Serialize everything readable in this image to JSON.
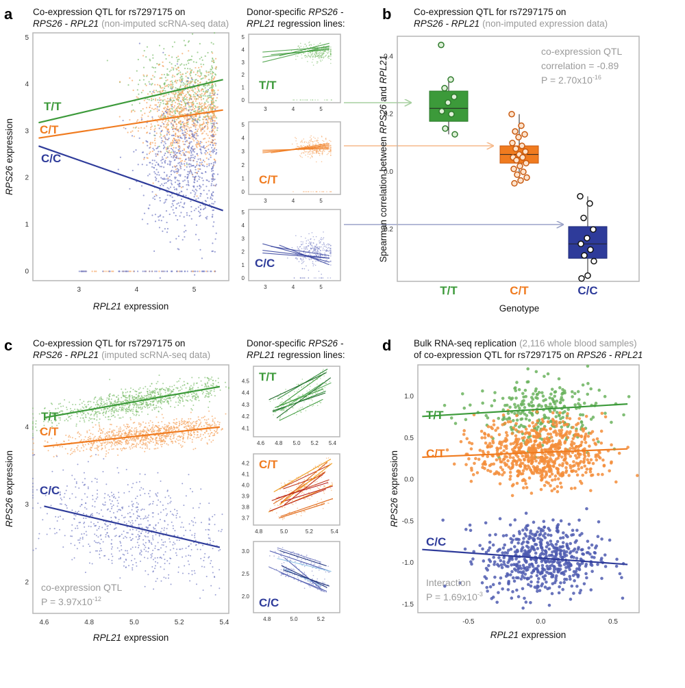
{
  "colors": {
    "tt": "#3c9a3a",
    "ct": "#f07b1f",
    "cc": "#2e3b9a",
    "frame": "#b5b5b5",
    "grey": "#9a9a9a"
  },
  "labels": {
    "a": "a",
    "b": "b",
    "c": "c",
    "d": "d",
    "tt": "T/T",
    "ct": "C/T",
    "cc": "C/C",
    "title_a1": "Co-expression QTL for rs7297175 on",
    "title_a2_genes": "RPS26 - RPL21",
    "title_a2_note": "(non-imputed scRNA-seq data)",
    "donor1_a": "Donor-specific",
    "donor1_b": "RPS26",
    "donor1_c": "-",
    "donor2_a": "RPL21",
    "donor2_b": "regression lines:",
    "title_b1": "Co-expression QTL for rs7297175 on",
    "title_b2_genes": "RPS26 - RPL21",
    "title_b2_note": "(non-imputed expression data)",
    "title_c1": "Co-expression QTL for rs7297175 on",
    "title_c2_genes": "RPS26 - RPL21",
    "title_c2_note": "(imputed scRNA-seq data)",
    "title_d1": "Bulk RNA-seq replication",
    "title_d1_note": "(2,116 whole blood samples)",
    "title_d2": "of co-expression QTL for rs7297175 on",
    "title_d2_genes": "RPS26 - RPL21",
    "rps26": "RPS26",
    "rpl21": "RPL21",
    "expression": "expression",
    "b_ylabel_1": "Spearman correlation between",
    "b_ylabel_2": "RPS26",
    "b_ylabel_3": "and",
    "b_ylabel_4": "RPL21",
    "b_xlabel": "Genotype",
    "b_ann1": "co-expression QTL",
    "b_ann2": "correlation = -0.89",
    "b_ann3a": "P = 2.70x10",
    "b_ann3b": "-16",
    "c_ann1": "co-expression QTL",
    "c_ann2a": "P = 3.97x10",
    "c_ann2b": "-12",
    "d_ann1": "Interaction",
    "d_ann2a": "P = 1.69x10",
    "d_ann2b": "-3"
  },
  "chart_data": [
    {
      "panel": "a",
      "type": "scatter",
      "xlabel": "RPL21 expression",
      "ylabel": "RPS26 expression",
      "xlim": [
        2.2,
        5.6
      ],
      "ylim": [
        -0.2,
        5.1
      ],
      "xticks": [
        3,
        4,
        5
      ],
      "yticks": [
        0,
        1,
        2,
        3,
        4,
        5
      ],
      "series": [
        {
          "name": "T/T",
          "line": [
            [
              2.3,
              3.18
            ],
            [
              5.5,
              4.1
            ]
          ],
          "center": [
            4.85,
            3.85
          ],
          "spread": [
            0.4,
            0.45
          ],
          "n": 500,
          "zeros": 0
        },
        {
          "name": "C/T",
          "line": [
            [
              2.3,
              2.85
            ],
            [
              5.5,
              3.45
            ]
          ],
          "center": [
            4.85,
            3.3
          ],
          "spread": [
            0.38,
            0.5
          ],
          "n": 900,
          "zeros": 30
        },
        {
          "name": "C/C",
          "line": [
            [
              2.3,
              2.68
            ],
            [
              5.5,
              1.3
            ]
          ],
          "center": [
            4.85,
            2.2
          ],
          "spread": [
            0.38,
            0.75
          ],
          "n": 700,
          "zeros": 60
        }
      ]
    },
    {
      "panel": "a-donor",
      "type": "line",
      "subplots": [
        {
          "name": "T/T",
          "xlim": [
            2.5,
            5.6
          ],
          "ylim": [
            0,
            5
          ],
          "xticks": [
            3,
            4,
            5
          ],
          "yticks": [
            0,
            1,
            2,
            3,
            4,
            5
          ],
          "center": [
            4.8,
            3.8
          ],
          "lines": [
            [
              [
                2.9,
                3.4
              ],
              [
                5.3,
                4.1
              ]
            ],
            [
              [
                2.9,
                3.0
              ],
              [
                5.3,
                4.3
              ]
            ],
            [
              [
                3.2,
                3.6
              ],
              [
                5.3,
                4.0
              ]
            ],
            [
              [
                2.9,
                3.8
              ],
              [
                5.3,
                4.2
              ]
            ],
            [
              [
                3.5,
                3.5
              ],
              [
                5.3,
                4.5
              ]
            ]
          ]
        },
        {
          "name": "C/T",
          "xlim": [
            2.5,
            5.6
          ],
          "ylim": [
            0,
            5
          ],
          "xticks": [
            3,
            4,
            5
          ],
          "yticks": [
            0,
            1,
            2,
            3,
            4,
            5
          ],
          "center": [
            4.8,
            3.3
          ],
          "lines": [
            [
              [
                2.9,
                2.9
              ],
              [
                5.3,
                3.4
              ]
            ],
            [
              [
                2.9,
                3.0
              ],
              [
                5.3,
                3.3
              ]
            ],
            [
              [
                3.2,
                2.9
              ],
              [
                5.3,
                3.5
              ]
            ],
            [
              [
                2.9,
                3.1
              ],
              [
                5.3,
                3.2
              ]
            ],
            [
              [
                3.5,
                3.0
              ],
              [
                5.3,
                3.6
              ]
            ]
          ]
        },
        {
          "name": "C/C",
          "xlim": [
            2.5,
            5.6
          ],
          "ylim": [
            0,
            5
          ],
          "xticks": [
            3,
            4,
            5
          ],
          "yticks": [
            0,
            1,
            2,
            3,
            4,
            5
          ],
          "center": [
            4.8,
            2.0
          ],
          "lines": [
            [
              [
                2.9,
                2.1
              ],
              [
                5.3,
                1.5
              ]
            ],
            [
              [
                2.9,
                2.6
              ],
              [
                5.3,
                1.2
              ]
            ],
            [
              [
                3.2,
                2.4
              ],
              [
                5.3,
                1.7
              ]
            ],
            [
              [
                2.9,
                1.9
              ],
              [
                5.3,
                1.5
              ]
            ],
            [
              [
                3.5,
                2.5
              ],
              [
                5.3,
                1.0
              ]
            ]
          ]
        }
      ]
    },
    {
      "panel": "b",
      "type": "box",
      "xlabel": "Genotype",
      "ylabel": "Spearman correlation between RPS26 and RPL21",
      "categories": [
        "T/T",
        "C/T",
        "C/C"
      ],
      "ylim": [
        -0.38,
        0.47
      ],
      "yticks": [
        -0.2,
        0.0,
        0.2,
        0.4
      ],
      "boxes": [
        {
          "q1": 0.175,
          "median": 0.22,
          "q3": 0.28,
          "whisker_lo": 0.13,
          "whisker_hi": 0.32,
          "points": [
            0.44,
            0.32,
            0.29,
            0.26,
            0.24,
            0.21,
            0.2,
            0.15,
            0.13
          ]
        },
        {
          "q1": 0.03,
          "median": 0.06,
          "q3": 0.09,
          "whisker_lo": -0.04,
          "whisker_hi": 0.2,
          "points": [
            0.2,
            0.16,
            0.14,
            0.13,
            0.12,
            0.1,
            0.09,
            0.08,
            0.07,
            0.06,
            0.05,
            0.05,
            0.04,
            0.03,
            0.02,
            0.01,
            0.0,
            -0.01,
            -0.02,
            -0.03,
            -0.04
          ]
        },
        {
          "q1": -0.3,
          "median": -0.25,
          "q3": -0.19,
          "whisker_lo": -0.37,
          "whisker_hi": -0.085,
          "points": [
            -0.085,
            -0.11,
            -0.16,
            -0.2,
            -0.23,
            -0.25,
            -0.27,
            -0.29,
            -0.31,
            -0.36,
            -0.37
          ]
        }
      ]
    },
    {
      "panel": "c",
      "type": "scatter",
      "xlabel": "RPL21 expression",
      "ylabel": "RPS26 expression",
      "xlim": [
        4.55,
        5.42
      ],
      "ylim": [
        1.6,
        4.8
      ],
      "xticks": [
        4.6,
        4.8,
        5.0,
        5.2,
        5.4
      ],
      "yticks": [
        2,
        3,
        4
      ],
      "series": [
        {
          "name": "T/T",
          "line": [
            [
              4.6,
              4.12
            ],
            [
              5.38,
              4.52
            ]
          ],
          "center": [
            5.0,
            4.3
          ],
          "spread": [
            0.2,
            0.08
          ],
          "n": 900
        },
        {
          "name": "C/T",
          "line": [
            [
              4.6,
              3.75
            ],
            [
              5.38,
              4.0
            ]
          ],
          "center": [
            5.05,
            3.9
          ],
          "spread": [
            0.18,
            0.08
          ],
          "n": 1000
        },
        {
          "name": "C/C",
          "line": [
            [
              4.6,
              2.98
            ],
            [
              5.38,
              2.45
            ]
          ],
          "center": [
            5.0,
            2.6
          ],
          "spread": [
            0.2,
            0.3
          ],
          "n": 700
        }
      ]
    },
    {
      "panel": "c-donor",
      "type": "line",
      "subplots": [
        {
          "name": "T/T",
          "xlim": [
            4.55,
            5.45
          ],
          "ylim": [
            4.05,
            4.6
          ],
          "xticks": [
            4.6,
            4.8,
            5.0,
            5.2,
            5.4
          ],
          "yticks": [
            4.1,
            4.2,
            4.3,
            4.4,
            4.5
          ]
        },
        {
          "name": "C/T",
          "xlim": [
            4.78,
            5.42
          ],
          "ylim": [
            3.66,
            4.26
          ],
          "xticks": [
            4.8,
            5.0,
            5.2,
            5.4
          ],
          "yticks": [
            3.7,
            3.8,
            3.9,
            4.0,
            4.1,
            4.2
          ]
        },
        {
          "name": "C/C",
          "xlim": [
            4.72,
            5.32
          ],
          "ylim": [
            1.7,
            3.15
          ],
          "xticks": [
            4.8,
            5.0,
            5.2
          ],
          "yticks": [
            2.0,
            2.5,
            3.0
          ]
        }
      ]
    },
    {
      "panel": "d",
      "type": "scatter",
      "xlabel": "RPL21 expression",
      "ylabel": "RPS26 expression",
      "xlim": [
        -0.85,
        0.68
      ],
      "ylim": [
        -1.6,
        1.38
      ],
      "xticks": [
        -0.5,
        0.0,
        0.5
      ],
      "yticks": [
        -1.5,
        -1.0,
        -0.5,
        0.0,
        0.5,
        1.0
      ],
      "series": [
        {
          "name": "T/T",
          "line": [
            [
              -0.82,
              0.76
            ],
            [
              0.6,
              0.91
            ]
          ],
          "center": [
            0.0,
            0.82
          ],
          "spread": [
            0.22,
            0.2
          ],
          "n": 260
        },
        {
          "name": "C/T",
          "line": [
            [
              -0.82,
              0.27
            ],
            [
              0.6,
              0.37
            ]
          ],
          "center": [
            0.0,
            0.32
          ],
          "spread": [
            0.22,
            0.2
          ],
          "n": 700
        },
        {
          "name": "C/C",
          "line": [
            [
              -0.82,
              -0.84
            ],
            [
              0.6,
              -1.02
            ]
          ],
          "center": [
            0.0,
            -0.95
          ],
          "spread": [
            0.2,
            0.22
          ],
          "n": 560
        }
      ]
    }
  ]
}
